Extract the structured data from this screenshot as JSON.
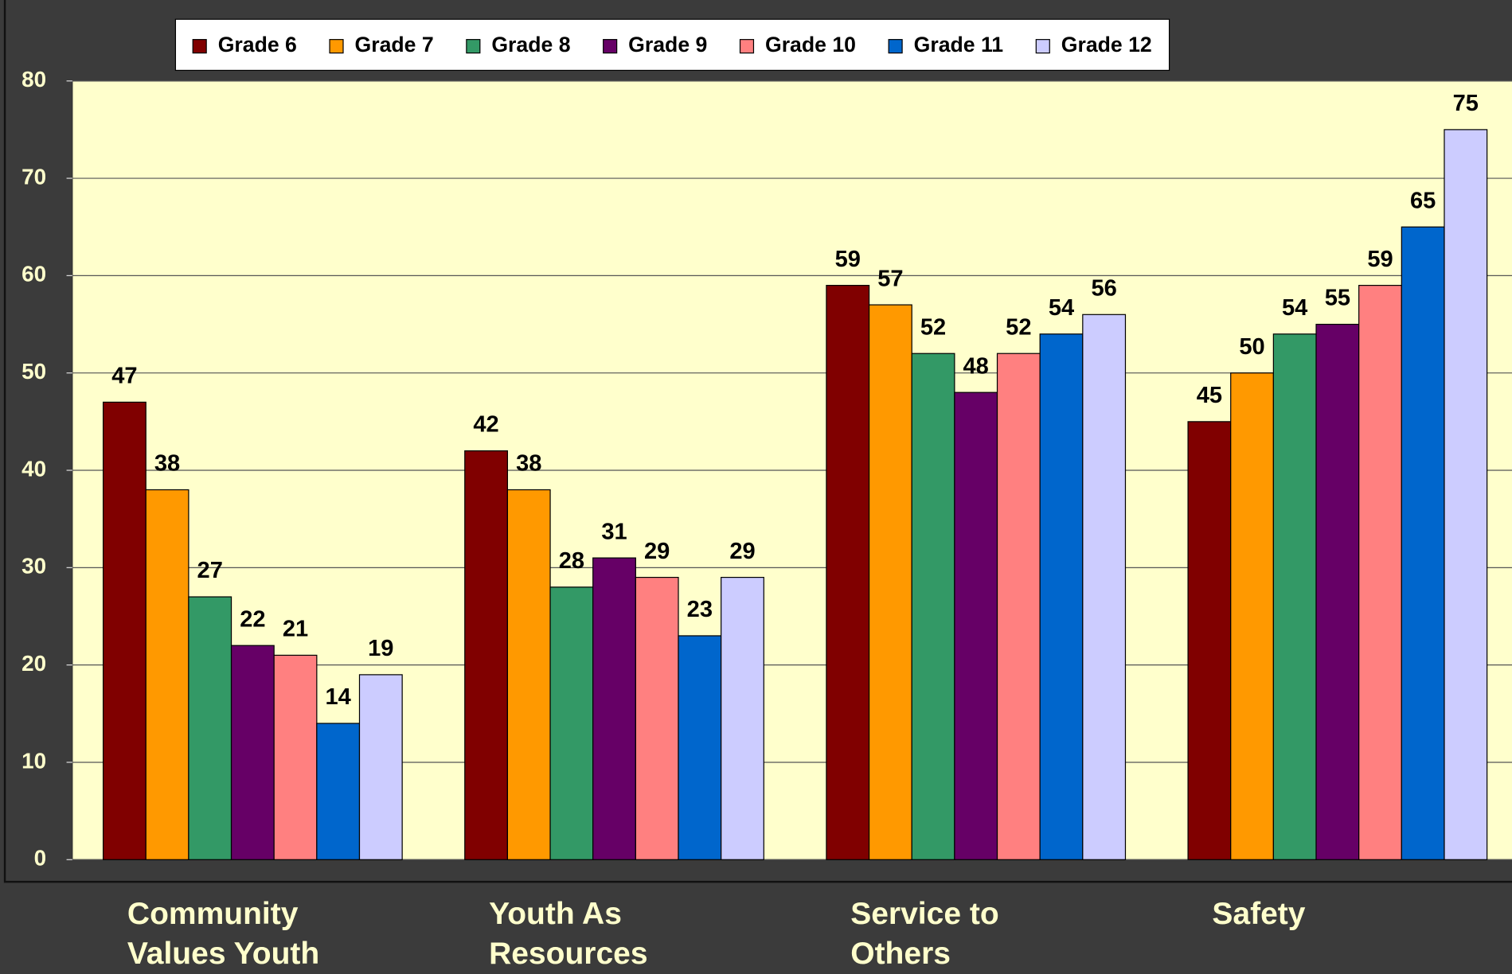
{
  "chart_data": {
    "type": "bar",
    "categories": [
      "Community Values Youth",
      "Youth As Resources",
      "Service to Others",
      "Safety"
    ],
    "series": [
      {
        "name": "Grade 6",
        "color": "#800000",
        "values": [
          47,
          42,
          59,
          45
        ]
      },
      {
        "name": "Grade 7",
        "color": "#ff9900",
        "values": [
          38,
          38,
          57,
          50
        ]
      },
      {
        "name": "Grade 8",
        "color": "#339966",
        "values": [
          27,
          28,
          52,
          54
        ]
      },
      {
        "name": "Grade 9",
        "color": "#660066",
        "values": [
          22,
          31,
          48,
          55
        ]
      },
      {
        "name": "Grade 10",
        "color": "#ff8080",
        "values": [
          21,
          29,
          52,
          59
        ]
      },
      {
        "name": "Grade 11",
        "color": "#0066cc",
        "values": [
          14,
          23,
          54,
          65
        ]
      },
      {
        "name": "Grade 12",
        "color": "#ccccff",
        "values": [
          19,
          29,
          56,
          75
        ]
      }
    ],
    "ylim": [
      0,
      80
    ],
    "yticks": [
      0,
      10,
      20,
      30,
      40,
      50,
      60,
      70,
      80
    ],
    "grid": true,
    "legend": "top"
  }
}
